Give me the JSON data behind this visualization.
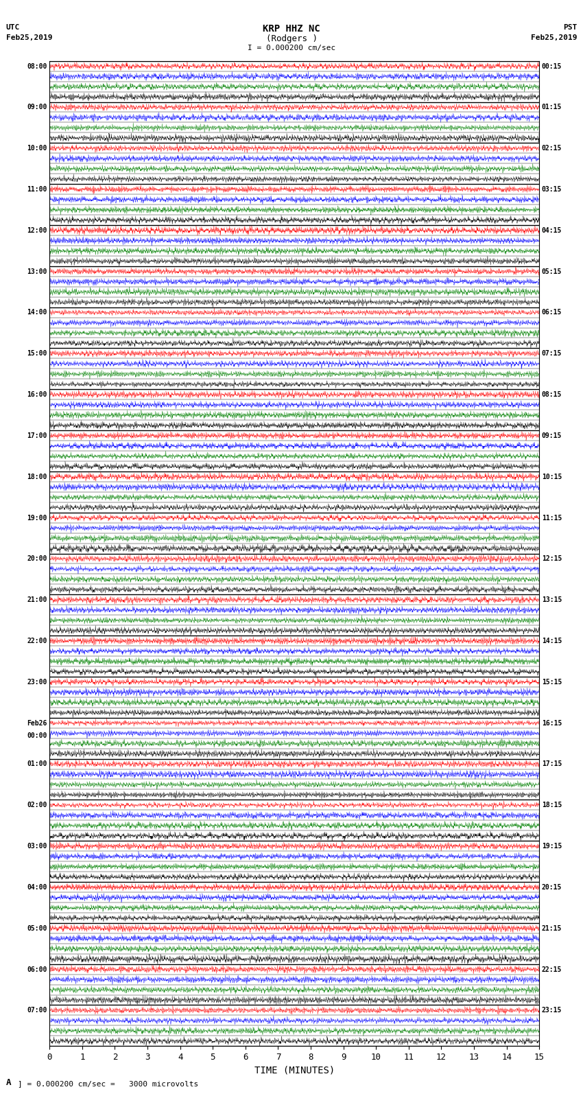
{
  "title_line1": "KRP HHZ NC",
  "title_line2": "(Rodgers )",
  "scale_label": "I = 0.000200 cm/sec",
  "left_label_line1": "UTC",
  "left_label_line2": "Feb25,2019",
  "right_label_line1": "PST",
  "right_label_line2": "Feb25,2019",
  "bottom_label": "TIME (MINUTES)",
  "legend_text": "= 0.000200 cm/sec =   3000 microvolts",
  "utc_times": [
    "08:00",
    "09:00",
    "10:00",
    "11:00",
    "12:00",
    "13:00",
    "14:00",
    "15:00",
    "16:00",
    "17:00",
    "18:00",
    "19:00",
    "20:00",
    "21:00",
    "22:00",
    "23:00",
    "Feb26\n00:00",
    "01:00",
    "02:00",
    "03:00",
    "04:00",
    "05:00",
    "06:00",
    "07:00"
  ],
  "pst_times": [
    "00:15",
    "01:15",
    "02:15",
    "03:15",
    "04:15",
    "05:15",
    "06:15",
    "07:15",
    "08:15",
    "09:15",
    "10:15",
    "11:15",
    "12:15",
    "13:15",
    "14:15",
    "15:15",
    "16:15",
    "17:15",
    "18:15",
    "19:15",
    "20:15",
    "21:15",
    "22:15",
    "23:15"
  ],
  "n_rows": 24,
  "x_ticks": [
    0,
    1,
    2,
    3,
    4,
    5,
    6,
    7,
    8,
    9,
    10,
    11,
    12,
    13,
    14,
    15
  ],
  "bg_color": "white",
  "colors": [
    "red",
    "blue",
    "green",
    "black"
  ],
  "figsize": [
    8.5,
    16.13
  ],
  "dpi": 100,
  "n_traces_per_row": 4,
  "n_samples": 9000
}
